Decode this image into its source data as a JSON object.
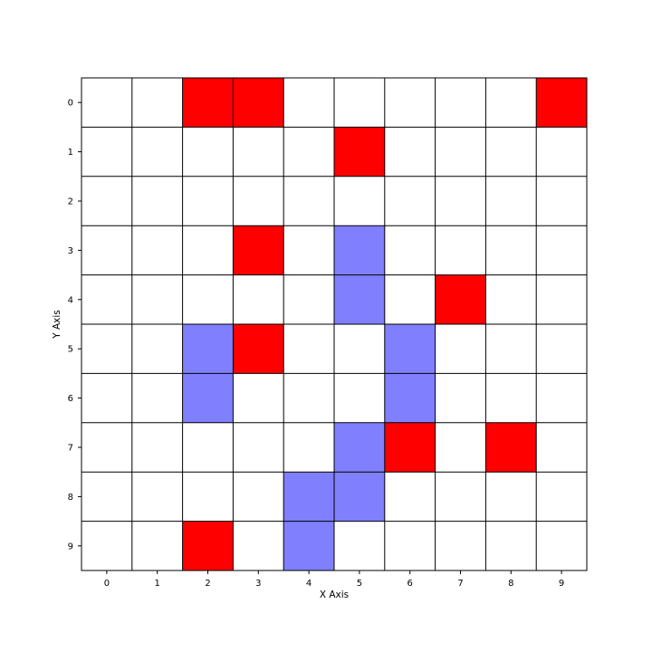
{
  "chart_data": {
    "type": "heatmap",
    "title": "",
    "xlabel": "X Axis",
    "ylabel": "Y Axis",
    "x_ticks": [
      "0",
      "1",
      "2",
      "3",
      "4",
      "5",
      "6",
      "7",
      "8",
      "9"
    ],
    "y_ticks": [
      "0",
      "1",
      "2",
      "3",
      "4",
      "5",
      "6",
      "7",
      "8",
      "9"
    ],
    "xlim": [
      -0.5,
      9.5
    ],
    "ylim": [
      9.5,
      -0.5
    ],
    "y_inverted": true,
    "grid": true,
    "colors": {
      "red": "#ff0000",
      "blue": "#8080ff",
      "empty": "#ffffff",
      "grid": "#000000"
    },
    "grid_values": [
      [
        0,
        0,
        1,
        1,
        0,
        0,
        0,
        0,
        0,
        1
      ],
      [
        0,
        0,
        0,
        0,
        0,
        1,
        0,
        0,
        0,
        0
      ],
      [
        0,
        0,
        0,
        0,
        0,
        0,
        0,
        0,
        0,
        0
      ],
      [
        0,
        0,
        0,
        1,
        0,
        2,
        0,
        0,
        0,
        0
      ],
      [
        0,
        0,
        0,
        0,
        0,
        2,
        0,
        1,
        0,
        0
      ],
      [
        0,
        0,
        2,
        1,
        0,
        0,
        2,
        0,
        0,
        0
      ],
      [
        0,
        0,
        2,
        0,
        0,
        0,
        2,
        0,
        0,
        0
      ],
      [
        0,
        0,
        0,
        0,
        0,
        2,
        1,
        0,
        1,
        0
      ],
      [
        0,
        0,
        0,
        0,
        2,
        2,
        0,
        0,
        0,
        0
      ],
      [
        0,
        0,
        1,
        0,
        2,
        0,
        0,
        0,
        0,
        0
      ]
    ],
    "value_legend": {
      "0": "empty",
      "1": "red",
      "2": "blue"
    }
  }
}
